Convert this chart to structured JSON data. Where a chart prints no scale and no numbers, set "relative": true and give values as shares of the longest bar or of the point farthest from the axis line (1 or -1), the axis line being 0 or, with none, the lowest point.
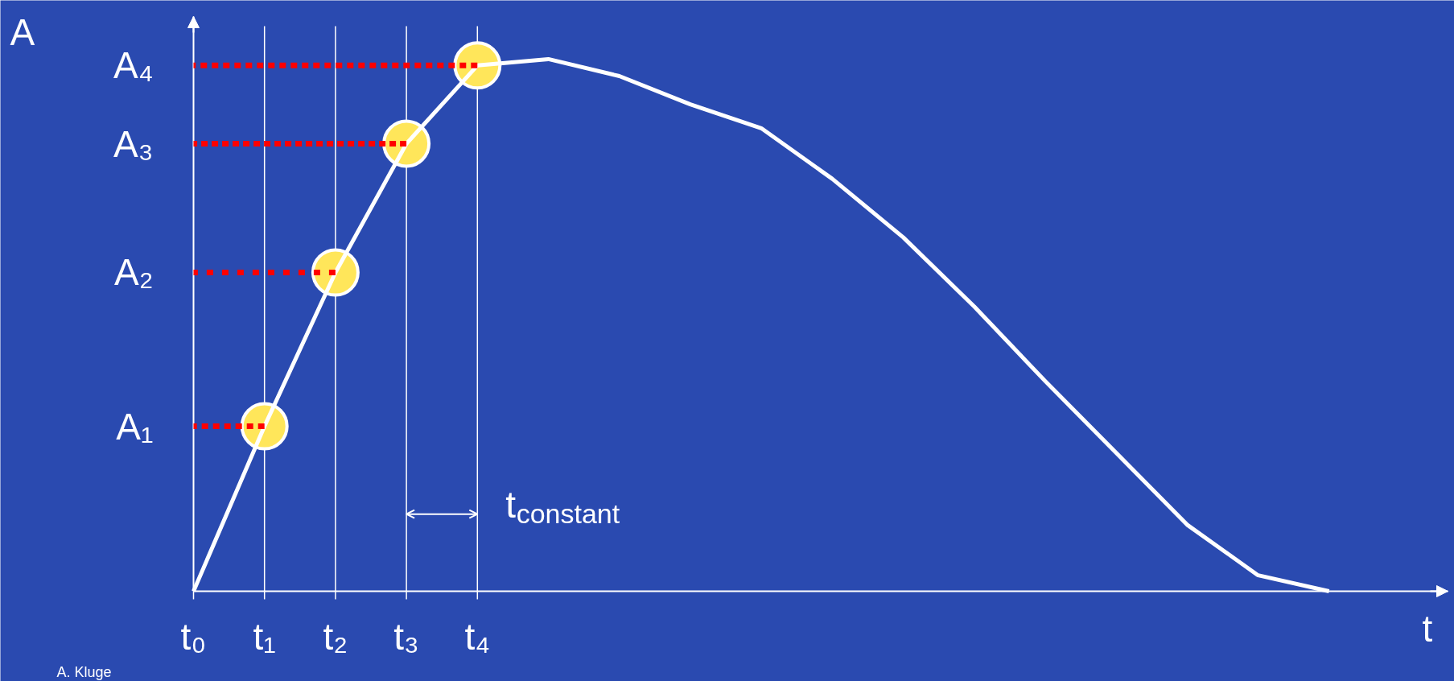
{
  "chart_data": {
    "type": "line",
    "relative": true,
    "xlabel": "t",
    "ylabel": "A",
    "categories": [
      "t₀",
      "t₁",
      "t₂",
      "t₃",
      "t₄",
      null,
      null,
      null,
      null,
      null,
      null,
      null,
      null,
      null,
      null,
      null,
      null
    ],
    "series": [
      {
        "color": "#ffffff",
        "values": [
          0,
          0.31,
          0.599,
          0.841,
          0.988,
          1.0,
          0.968,
          0.915,
          0.87,
          0.775,
          0.665,
          0.535,
          0.395,
          0.26,
          0.125,
          0.03,
          0
        ]
      },
      {
        "type": "line",
        "color": "#ff0000",
        "line_style": "dotted",
        "values": [
          0.31,
          0.31,
          null,
          null,
          null,
          null,
          null,
          null,
          null,
          null,
          null,
          null,
          null,
          null,
          null,
          null,
          null
        ]
      },
      {
        "type": "line",
        "color": "#ff0000",
        "line_style": "dotted",
        "values": [
          0.599,
          0.599,
          0.599,
          null,
          null,
          null,
          null,
          null,
          null,
          null,
          null,
          null,
          null,
          null,
          null,
          null,
          null
        ]
      },
      {
        "type": "line",
        "color": "#ff0000",
        "line_style": "dotted",
        "values": [
          0.841,
          0.841,
          0.841,
          0.841,
          null,
          null,
          null,
          null,
          null,
          null,
          null,
          null,
          null,
          null,
          null,
          null,
          null
        ]
      },
      {
        "type": "line",
        "color": "#ff0000",
        "line_style": "dotted",
        "values": [
          0.988,
          0.988,
          0.988,
          0.988,
          0.988,
          null,
          null,
          null,
          null,
          null,
          null,
          null,
          null,
          null,
          null,
          null,
          null
        ]
      },
      {
        "type": "scatter",
        "color": "#ffe65a",
        "marker": "circle",
        "values": [
          null,
          0.31,
          0.599,
          0.841,
          0.988,
          null,
          null,
          null,
          null,
          null,
          null,
          null,
          null,
          null,
          null,
          null,
          null
        ]
      }
    ],
    "ref_lines": [
      {
        "axis": "x",
        "value": "t₁",
        "color": "#ffffff"
      },
      {
        "axis": "x",
        "value": "t₂",
        "color": "#ffffff"
      },
      {
        "axis": "x",
        "value": "t₃",
        "color": "#ffffff"
      },
      {
        "axis": "x",
        "value": "t₄",
        "color": "#ffffff"
      }
    ],
    "annotations": [
      {
        "text": "t$_{constant}$",
        "x": "t₄",
        "y": 0.145
      },
      {
        "text": "A₁",
        "x": "t₀",
        "y": 0.31
      },
      {
        "text": "A₂",
        "x": "t₀",
        "y": 0.599
      },
      {
        "text": "A₃",
        "x": "t₀",
        "y": 0.841
      },
      {
        "text": "A₄",
        "x": "t₀",
        "y": 0.988
      },
      "A. Kluge"
    ]
  }
}
